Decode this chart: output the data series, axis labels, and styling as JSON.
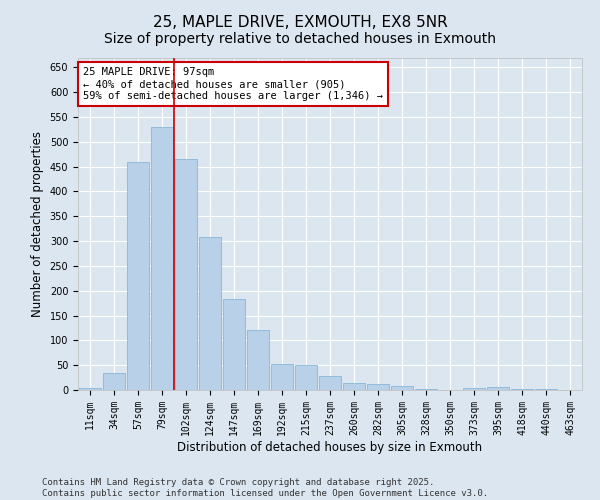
{
  "title": "25, MAPLE DRIVE, EXMOUTH, EX8 5NR",
  "subtitle": "Size of property relative to detached houses in Exmouth",
  "xlabel": "Distribution of detached houses by size in Exmouth",
  "ylabel": "Number of detached properties",
  "categories": [
    "11sqm",
    "34sqm",
    "57sqm",
    "79sqm",
    "102sqm",
    "124sqm",
    "147sqm",
    "169sqm",
    "192sqm",
    "215sqm",
    "237sqm",
    "260sqm",
    "282sqm",
    "305sqm",
    "328sqm",
    "350sqm",
    "373sqm",
    "395sqm",
    "418sqm",
    "440sqm",
    "463sqm"
  ],
  "values": [
    5,
    35,
    460,
    530,
    465,
    308,
    183,
    120,
    52,
    50,
    28,
    15,
    12,
    8,
    3,
    0,
    5,
    6,
    2,
    2,
    0
  ],
  "bar_color": "#b8d0e8",
  "bar_edge_color": "#7aafd4",
  "vline_color": "#cc0000",
  "vline_x": 3.5,
  "ylim": [
    0,
    670
  ],
  "yticks": [
    0,
    50,
    100,
    150,
    200,
    250,
    300,
    350,
    400,
    450,
    500,
    550,
    600,
    650
  ],
  "annotation_box_text": "25 MAPLE DRIVE: 97sqm\n← 40% of detached houses are smaller (905)\n59% of semi-detached houses are larger (1,346) →",
  "annotation_box_edgecolor": "#cc0000",
  "annotation_box_facecolor": "#ffffff",
  "footer_line1": "Contains HM Land Registry data © Crown copyright and database right 2025.",
  "footer_line2": "Contains public sector information licensed under the Open Government Licence v3.0.",
  "background_color": "#dce6f0",
  "plot_background_color": "#dce6f0",
  "title_fontsize": 11,
  "subtitle_fontsize": 10,
  "tick_fontsize": 7,
  "label_fontsize": 8.5,
  "footer_fontsize": 6.5,
  "annotation_fontsize": 7.5
}
